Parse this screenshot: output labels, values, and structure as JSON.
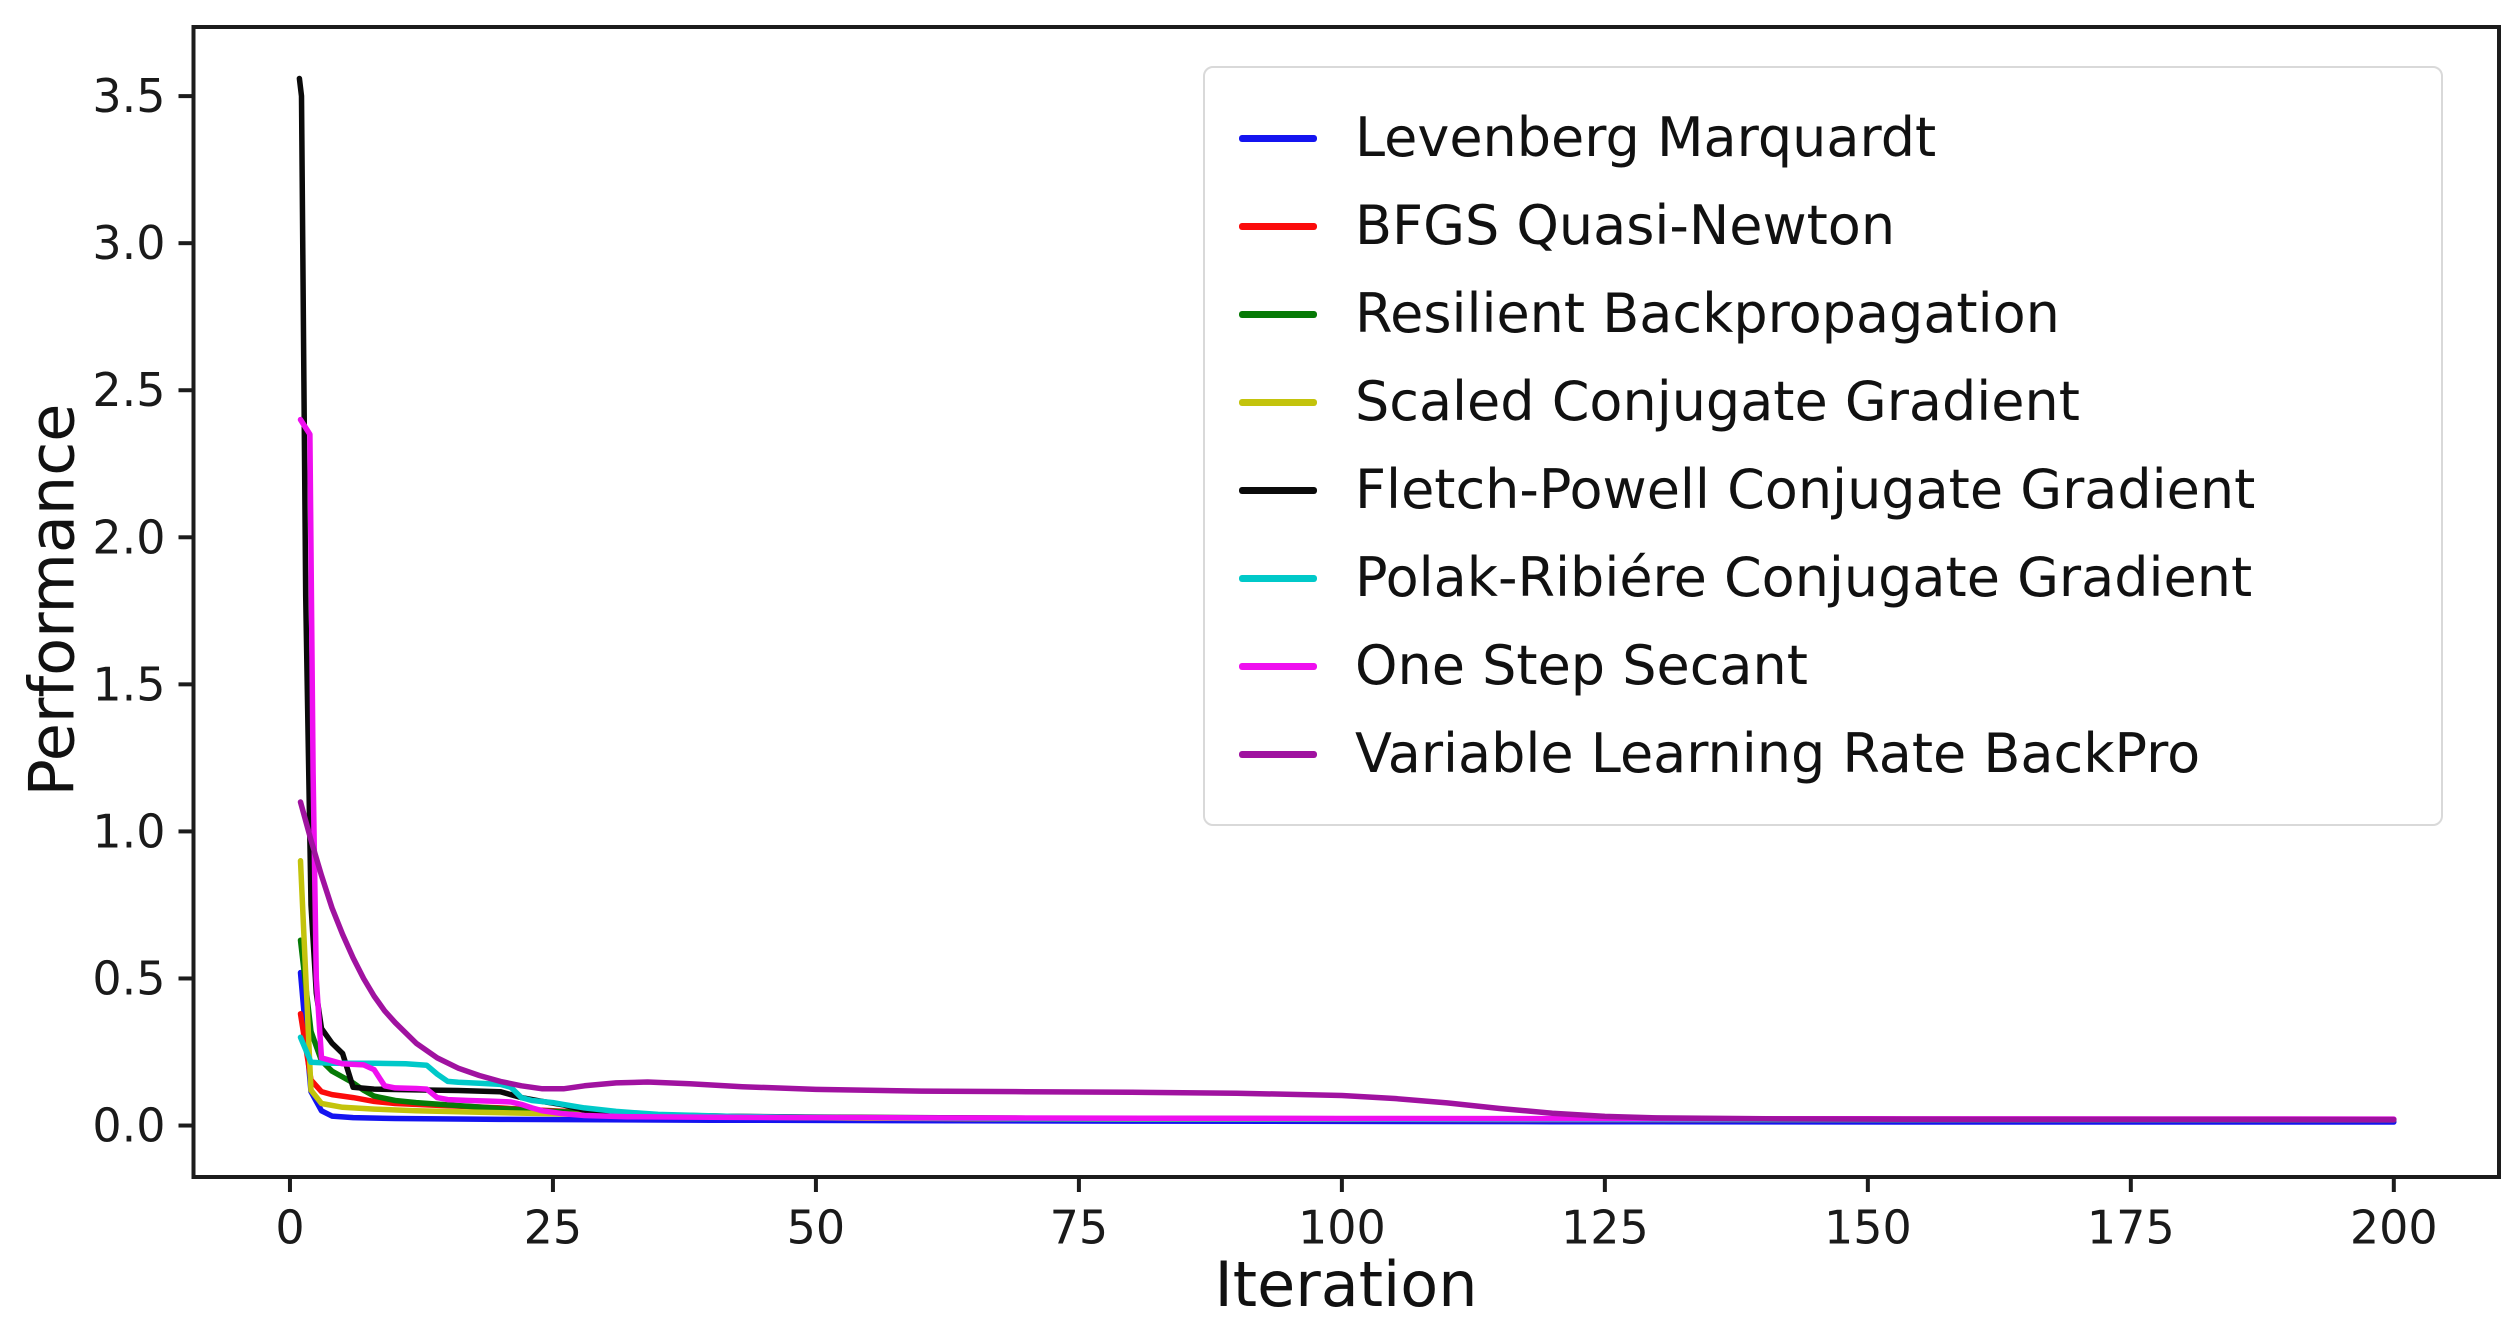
{
  "chart_data": {
    "type": "line",
    "title": "",
    "xlabel": "Iteration",
    "ylabel": "Performance",
    "xlim": [
      -9.17,
      210.0
    ],
    "ylim": [
      -0.175,
      3.735
    ],
    "x_ticks": [
      0,
      25,
      50,
      75,
      100,
      125,
      150,
      175,
      200
    ],
    "y_ticks": [
      "0.0",
      "0.5",
      "1.0",
      "1.5",
      "2.0",
      "2.5",
      "3.0",
      "3.5"
    ],
    "grid": false,
    "legend_position": "upper right",
    "spine_color": "#1c1c1c",
    "tick_text_color": "#1a1a1a",
    "legend_border_color": "#d9d9d9",
    "series": [
      {
        "name": "Levenberg Marquardt",
        "color": "#1414f0",
        "points": [
          [
            1,
            0.52
          ],
          [
            2,
            0.115
          ],
          [
            3,
            0.05
          ],
          [
            4,
            0.032
          ],
          [
            6,
            0.027
          ],
          [
            10,
            0.024
          ],
          [
            20,
            0.021
          ],
          [
            40,
            0.018
          ],
          [
            80,
            0.015
          ],
          [
            120,
            0.013
          ],
          [
            160,
            0.012
          ],
          [
            200,
            0.012
          ]
        ]
      },
      {
        "name": "BFGS Quasi-Newton",
        "color": "#fb0b0b",
        "points": [
          [
            1,
            0.38
          ],
          [
            2,
            0.155
          ],
          [
            3,
            0.115
          ],
          [
            4,
            0.105
          ],
          [
            6,
            0.095
          ],
          [
            8,
            0.082
          ],
          [
            10,
            0.075
          ],
          [
            13,
            0.07
          ],
          [
            16,
            0.066
          ],
          [
            20,
            0.06
          ],
          [
            24,
            0.052
          ],
          [
            28,
            0.045
          ],
          [
            33,
            0.038
          ],
          [
            40,
            0.032
          ],
          [
            50,
            0.027
          ],
          [
            70,
            0.023
          ],
          [
            100,
            0.021
          ],
          [
            150,
            0.02
          ],
          [
            200,
            0.019
          ]
        ]
      },
      {
        "name": "Resilient Backpropagation",
        "color": "#067a06",
        "points": [
          [
            1,
            0.63
          ],
          [
            2,
            0.32
          ],
          [
            3,
            0.22
          ],
          [
            4,
            0.185
          ],
          [
            5,
            0.165
          ],
          [
            6,
            0.145
          ],
          [
            7,
            0.12
          ],
          [
            8,
            0.1
          ],
          [
            10,
            0.085
          ],
          [
            12,
            0.078
          ],
          [
            15,
            0.07
          ],
          [
            20,
            0.058
          ],
          [
            25,
            0.048
          ],
          [
            30,
            0.04
          ],
          [
            38,
            0.032
          ],
          [
            50,
            0.027
          ],
          [
            70,
            0.024
          ],
          [
            110,
            0.022
          ],
          [
            200,
            0.021
          ]
        ]
      },
      {
        "name": "Scaled Conjugate Gradient",
        "color": "#c3c30c",
        "points": [
          [
            1,
            0.9
          ],
          [
            2,
            0.12
          ],
          [
            3,
            0.075
          ],
          [
            5,
            0.062
          ],
          [
            8,
            0.056
          ],
          [
            12,
            0.05
          ],
          [
            18,
            0.045
          ],
          [
            25,
            0.04
          ],
          [
            32,
            0.034
          ],
          [
            42,
            0.029
          ],
          [
            55,
            0.025
          ],
          [
            80,
            0.022
          ],
          [
            130,
            0.021
          ],
          [
            200,
            0.02
          ]
        ]
      },
      {
        "name": "Fletch-Powell Conjugate Gradient",
        "color": "#0a0a0a",
        "points": [
          [
            0.9,
            3.56
          ],
          [
            1.1,
            3.5
          ],
          [
            1.5,
            1.8
          ],
          [
            2,
            0.75
          ],
          [
            2.5,
            0.45
          ],
          [
            3,
            0.33
          ],
          [
            4,
            0.28
          ],
          [
            5,
            0.245
          ],
          [
            6,
            0.13
          ],
          [
            8,
            0.124
          ],
          [
            12,
            0.121
          ],
          [
            16,
            0.119
          ],
          [
            20,
            0.115
          ],
          [
            22,
            0.095
          ],
          [
            24,
            0.082
          ],
          [
            26,
            0.07
          ],
          [
            28,
            0.052
          ],
          [
            31,
            0.042
          ],
          [
            35,
            0.036
          ],
          [
            42,
            0.031
          ],
          [
            52,
            0.028
          ],
          [
            70,
            0.025
          ],
          [
            100,
            0.023
          ],
          [
            150,
            0.022
          ],
          [
            200,
            0.021
          ]
        ]
      },
      {
        "name": "Polak-Ribiére Conjugate Gradient",
        "color": "#00c9c9",
        "points": [
          [
            1,
            0.3
          ],
          [
            2,
            0.215
          ],
          [
            4,
            0.212
          ],
          [
            8,
            0.212
          ],
          [
            11,
            0.21
          ],
          [
            13,
            0.205
          ],
          [
            14,
            0.175
          ],
          [
            15,
            0.15
          ],
          [
            16,
            0.147
          ],
          [
            18,
            0.144
          ],
          [
            20,
            0.14
          ],
          [
            21,
            0.13
          ],
          [
            22,
            0.095
          ],
          [
            23,
            0.085
          ],
          [
            25,
            0.078
          ],
          [
            26,
            0.072
          ],
          [
            28,
            0.06
          ],
          [
            31,
            0.048
          ],
          [
            35,
            0.038
          ],
          [
            42,
            0.031
          ],
          [
            52,
            0.027
          ],
          [
            75,
            0.023
          ],
          [
            120,
            0.021
          ],
          [
            200,
            0.02
          ]
        ]
      },
      {
        "name": "One Step Secant",
        "color": "#ef0fef",
        "points": [
          [
            1,
            2.4
          ],
          [
            1.9,
            2.35
          ],
          [
            2.2,
            1.2
          ],
          [
            2.5,
            0.5
          ],
          [
            3,
            0.23
          ],
          [
            5,
            0.21
          ],
          [
            7,
            0.206
          ],
          [
            8,
            0.19
          ],
          [
            9,
            0.135
          ],
          [
            10,
            0.128
          ],
          [
            12,
            0.126
          ],
          [
            13,
            0.124
          ],
          [
            14,
            0.095
          ],
          [
            15,
            0.088
          ],
          [
            17,
            0.085
          ],
          [
            19,
            0.083
          ],
          [
            21,
            0.08
          ],
          [
            22,
            0.072
          ],
          [
            23,
            0.06
          ],
          [
            24,
            0.05
          ],
          [
            26,
            0.04
          ],
          [
            28,
            0.034
          ],
          [
            32,
            0.03
          ],
          [
            40,
            0.028
          ],
          [
            60,
            0.026
          ],
          [
            100,
            0.024
          ],
          [
            150,
            0.023
          ],
          [
            200,
            0.022
          ]
        ]
      },
      {
        "name": "Variable Learning Rate BackPro",
        "color": "#a012a0",
        "points": [
          [
            1,
            1.1
          ],
          [
            2,
            0.97
          ],
          [
            3,
            0.85
          ],
          [
            4,
            0.74
          ],
          [
            5,
            0.65
          ],
          [
            6,
            0.57
          ],
          [
            7,
            0.5
          ],
          [
            8,
            0.44
          ],
          [
            9,
            0.39
          ],
          [
            10,
            0.35
          ],
          [
            12,
            0.28
          ],
          [
            14,
            0.23
          ],
          [
            16,
            0.195
          ],
          [
            18,
            0.17
          ],
          [
            20,
            0.15
          ],
          [
            22,
            0.135
          ],
          [
            24,
            0.125
          ],
          [
            26,
            0.125
          ],
          [
            28,
            0.135
          ],
          [
            31,
            0.145
          ],
          [
            34,
            0.148
          ],
          [
            38,
            0.142
          ],
          [
            43,
            0.132
          ],
          [
            50,
            0.123
          ],
          [
            60,
            0.117
          ],
          [
            70,
            0.115
          ],
          [
            80,
            0.113
          ],
          [
            90,
            0.11
          ],
          [
            100,
            0.102
          ],
          [
            105,
            0.092
          ],
          [
            110,
            0.077
          ],
          [
            115,
            0.058
          ],
          [
            120,
            0.042
          ],
          [
            125,
            0.031
          ],
          [
            130,
            0.026
          ],
          [
            140,
            0.023
          ],
          [
            160,
            0.021
          ],
          [
            180,
            0.021
          ],
          [
            200,
            0.02
          ]
        ]
      }
    ]
  }
}
